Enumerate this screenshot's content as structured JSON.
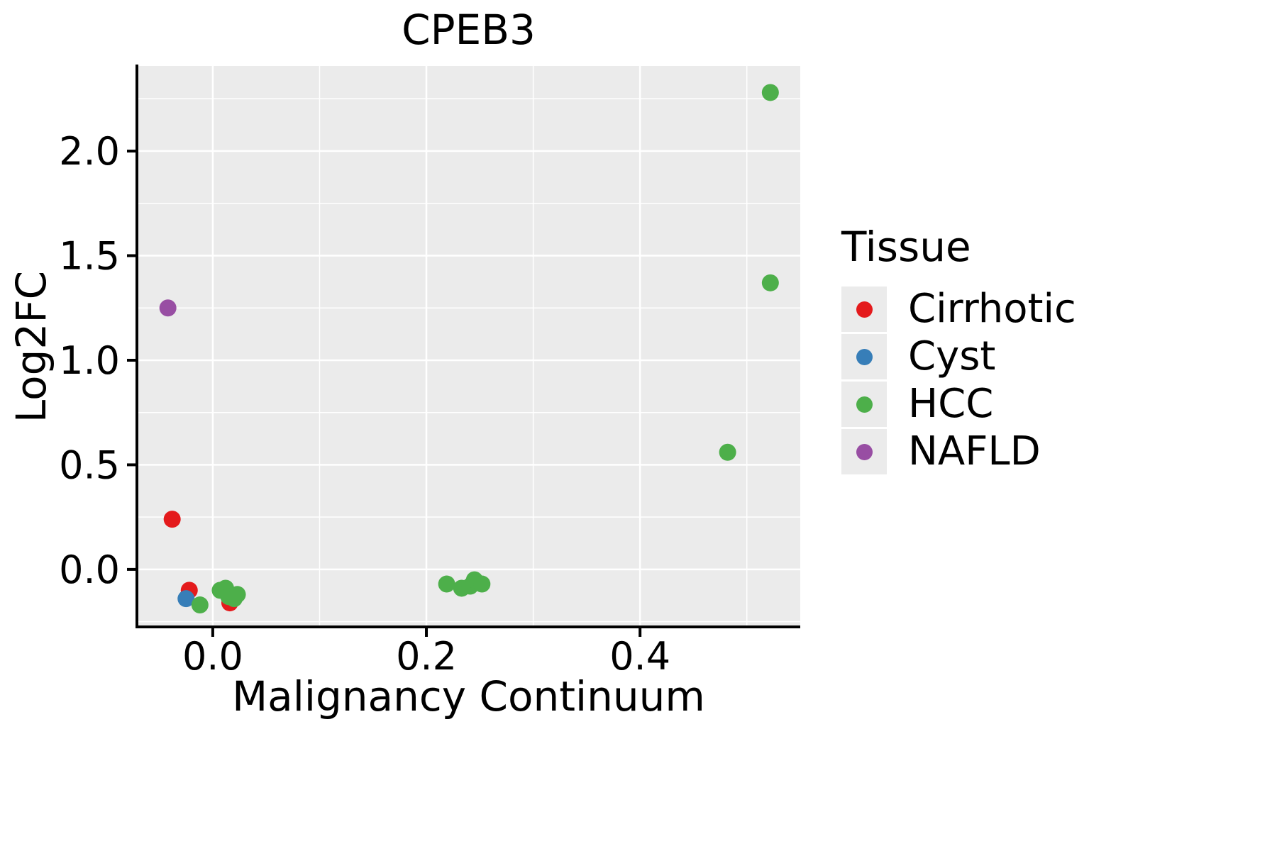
{
  "chart_data": {
    "type": "scatter",
    "title": "CPEB3",
    "xlabel": "Malignancy Continuum",
    "ylabel": "Log2FC",
    "xlim": [
      -0.071,
      0.55
    ],
    "ylim": [
      -0.275,
      2.407
    ],
    "x_ticks": [
      {
        "value": 0.0,
        "label": "0.0"
      },
      {
        "value": 0.2,
        "label": "0.2"
      },
      {
        "value": 0.4,
        "label": "0.4"
      }
    ],
    "y_ticks": [
      {
        "value": 0.0,
        "label": "0.0"
      },
      {
        "value": 0.5,
        "label": "0.5"
      },
      {
        "value": 1.0,
        "label": "1.0"
      },
      {
        "value": 1.5,
        "label": "1.5"
      },
      {
        "value": 2.0,
        "label": "2.0"
      }
    ],
    "x_minor_ticks": [
      0.1,
      0.3,
      0.5
    ],
    "y_minor_ticks": [
      -0.25,
      0.25,
      0.75,
      1.25,
      1.75,
      2.25
    ],
    "panel_bg": "#ebebeb",
    "grid_color": "#ffffff",
    "axis_color": "#000000",
    "point_radius": 12,
    "legend": {
      "title": "Tissue",
      "position": "right"
    },
    "series": [
      {
        "name": "Cirrhotic",
        "color": "#e41a1c",
        "points": [
          [
            -0.038,
            0.24
          ],
          [
            -0.022,
            -0.1
          ],
          [
            0.016,
            -0.16
          ]
        ]
      },
      {
        "name": "Cyst",
        "color": "#377eb8",
        "points": [
          [
            -0.025,
            -0.14
          ]
        ]
      },
      {
        "name": "HCC",
        "color": "#4daf4a",
        "points": [
          [
            -0.012,
            -0.17
          ],
          [
            0.007,
            -0.1
          ],
          [
            0.012,
            -0.09
          ],
          [
            0.015,
            -0.13
          ],
          [
            0.02,
            -0.14
          ],
          [
            0.023,
            -0.12
          ],
          [
            0.219,
            -0.07
          ],
          [
            0.233,
            -0.09
          ],
          [
            0.241,
            -0.08
          ],
          [
            0.245,
            -0.05
          ],
          [
            0.252,
            -0.07
          ],
          [
            0.482,
            0.56
          ],
          [
            0.522,
            1.37
          ],
          [
            0.522,
            2.28
          ]
        ]
      },
      {
        "name": "NAFLD",
        "color": "#984ea3",
        "points": [
          [
            -0.042,
            1.25
          ]
        ]
      }
    ]
  }
}
